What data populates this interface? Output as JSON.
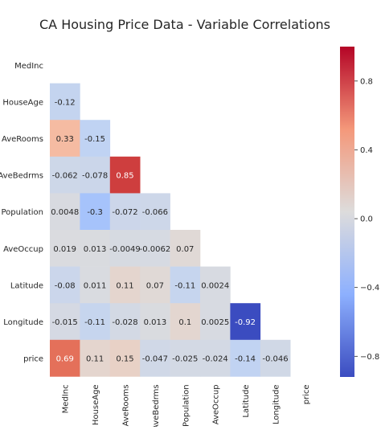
{
  "chart_data": {
    "type": "heatmap",
    "title": "CA Housing Price Data - Variable Correlations",
    "xlabel": "",
    "ylabel": "",
    "variables": [
      "MedInc",
      "HouseAge",
      "AveRooms",
      "AveBedrms",
      "Population",
      "AveOccup",
      "Latitude",
      "Longitude",
      "price"
    ],
    "mask": "upper-triangle-including-diagonal",
    "cells": [
      {
        "row": "HouseAge",
        "col": "MedInc",
        "value": -0.12,
        "label": "-0.12"
      },
      {
        "row": "AveRooms",
        "col": "MedInc",
        "value": 0.33,
        "label": "0.33"
      },
      {
        "row": "AveRooms",
        "col": "HouseAge",
        "value": -0.15,
        "label": "-0.15"
      },
      {
        "row": "AveBedrms",
        "col": "MedInc",
        "value": -0.062,
        "label": "-0.062"
      },
      {
        "row": "AveBedrms",
        "col": "HouseAge",
        "value": -0.078,
        "label": "-0.078"
      },
      {
        "row": "AveBedrms",
        "col": "AveRooms",
        "value": 0.85,
        "label": "0.85"
      },
      {
        "row": "Population",
        "col": "MedInc",
        "value": 0.0048,
        "label": "0.0048"
      },
      {
        "row": "Population",
        "col": "HouseAge",
        "value": -0.3,
        "label": "-0.3"
      },
      {
        "row": "Population",
        "col": "AveRooms",
        "value": -0.072,
        "label": "-0.072"
      },
      {
        "row": "Population",
        "col": "AveBedrms",
        "value": -0.066,
        "label": "-0.066"
      },
      {
        "row": "AveOccup",
        "col": "MedInc",
        "value": 0.019,
        "label": "0.019"
      },
      {
        "row": "AveOccup",
        "col": "HouseAge",
        "value": 0.013,
        "label": "0.013"
      },
      {
        "row": "AveOccup",
        "col": "AveRooms",
        "value": -0.0049,
        "label": "-0.0049"
      },
      {
        "row": "AveOccup",
        "col": "AveBedrms",
        "value": -0.0062,
        "label": "-0.0062"
      },
      {
        "row": "AveOccup",
        "col": "Population",
        "value": 0.07,
        "label": "0.07"
      },
      {
        "row": "Latitude",
        "col": "MedInc",
        "value": -0.08,
        "label": "-0.08"
      },
      {
        "row": "Latitude",
        "col": "HouseAge",
        "value": 0.011,
        "label": "0.011"
      },
      {
        "row": "Latitude",
        "col": "AveRooms",
        "value": 0.11,
        "label": "0.11"
      },
      {
        "row": "Latitude",
        "col": "AveBedrms",
        "value": 0.07,
        "label": "0.07"
      },
      {
        "row": "Latitude",
        "col": "Population",
        "value": -0.11,
        "label": "-0.11"
      },
      {
        "row": "Latitude",
        "col": "AveOccup",
        "value": 0.0024,
        "label": "0.0024"
      },
      {
        "row": "Longitude",
        "col": "MedInc",
        "value": -0.015,
        "label": "-0.015"
      },
      {
        "row": "Longitude",
        "col": "HouseAge",
        "value": -0.11,
        "label": "-0.11"
      },
      {
        "row": "Longitude",
        "col": "AveRooms",
        "value": -0.028,
        "label": "-0.028"
      },
      {
        "row": "Longitude",
        "col": "AveBedrms",
        "value": 0.013,
        "label": "0.013"
      },
      {
        "row": "Longitude",
        "col": "Population",
        "value": 0.1,
        "label": "0.1"
      },
      {
        "row": "Longitude",
        "col": "AveOccup",
        "value": 0.0025,
        "label": "0.0025"
      },
      {
        "row": "Longitude",
        "col": "Latitude",
        "value": -0.92,
        "label": "-0.92"
      },
      {
        "row": "price",
        "col": "MedInc",
        "value": 0.69,
        "label": "0.69"
      },
      {
        "row": "price",
        "col": "HouseAge",
        "value": 0.11,
        "label": "0.11"
      },
      {
        "row": "price",
        "col": "AveRooms",
        "value": 0.15,
        "label": "0.15"
      },
      {
        "row": "price",
        "col": "AveBedrms",
        "value": -0.047,
        "label": "-0.047"
      },
      {
        "row": "price",
        "col": "Population",
        "value": -0.025,
        "label": "-0.025"
      },
      {
        "row": "price",
        "col": "AveOccup",
        "value": -0.024,
        "label": "-0.024"
      },
      {
        "row": "price",
        "col": "Latitude",
        "value": -0.14,
        "label": "-0.14"
      },
      {
        "row": "price",
        "col": "Longitude",
        "value": -0.046,
        "label": "-0.046"
      }
    ],
    "colorbar": {
      "colormap": "coolwarm",
      "range": [
        -0.92,
        1
      ],
      "ticks": [
        {
          "value": 0.8,
          "label": "0.8"
        },
        {
          "value": 0.4,
          "label": "0.4"
        },
        {
          "value": 0.0,
          "label": "0.0"
        },
        {
          "value": -0.4,
          "label": "−0.4"
        },
        {
          "value": -0.8,
          "label": "−0.8"
        }
      ],
      "placement": "right"
    },
    "grid": false
  }
}
